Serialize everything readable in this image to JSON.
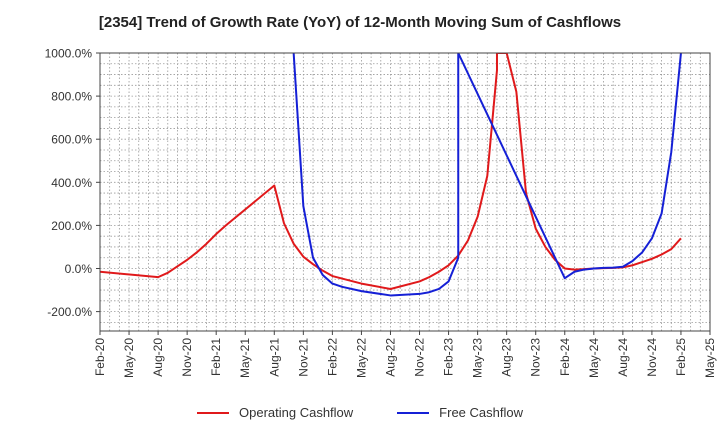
{
  "title": "[2354]  Trend of Growth Rate (YoY) of 12-Month Moving Sum of Cashflows",
  "chart_data": {
    "type": "line",
    "title": "[2354]  Trend of Growth Rate (YoY) of 12-Month Moving Sum of Cashflows",
    "xlabel": "",
    "ylabel": "",
    "xlim": [
      "Feb-20",
      "May-25"
    ],
    "ylim": [
      -290,
      1000
    ],
    "y_ticks": [
      1000,
      800,
      600,
      400,
      200,
      0,
      -200
    ],
    "y_tick_labels": [
      "1000.0%",
      "800.0%",
      "600.0%",
      "400.0%",
      "200.0%",
      "0.0%",
      "-200.0%"
    ],
    "x_ticks": [
      "Feb-20",
      "May-20",
      "Aug-20",
      "Nov-20",
      "Feb-21",
      "May-21",
      "Aug-21",
      "Nov-21",
      "Feb-22",
      "May-22",
      "Aug-22",
      "Nov-22",
      "Feb-23",
      "May-23",
      "Aug-23",
      "Nov-23",
      "Feb-24",
      "May-24",
      "Aug-24",
      "Nov-24",
      "Feb-25",
      "May-25"
    ],
    "grid": true,
    "legend_position": "bottom",
    "series": [
      {
        "name": "Operating Cashflow",
        "color": "#e0191b",
        "points": [
          [
            "Feb-20",
            -15
          ],
          [
            "Aug-20",
            -40
          ],
          [
            "Sep-20",
            -20
          ],
          [
            "Oct-20",
            10
          ],
          [
            "Nov-20",
            40
          ],
          [
            "Dec-20",
            75
          ],
          [
            "Jan-21",
            115
          ],
          [
            "Feb-21",
            160
          ],
          [
            "Mar-21",
            200
          ],
          [
            "Aug-21",
            385
          ],
          [
            "Sep-21",
            210
          ],
          [
            "Oct-21",
            115
          ],
          [
            "Nov-21",
            55
          ],
          [
            "Dec-21",
            20
          ],
          [
            "Jan-22",
            -10
          ],
          [
            "Feb-22",
            -35
          ],
          [
            "May-22",
            -70
          ],
          [
            "Aug-22",
            -95
          ],
          [
            "Nov-22",
            -60
          ],
          [
            "Dec-22",
            -40
          ],
          [
            "Jan-23",
            -15
          ],
          [
            "Feb-23",
            15
          ],
          [
            "Mar-23",
            60
          ],
          [
            "Apr-23",
            130
          ],
          [
            "May-23",
            240
          ],
          [
            "Jun-23",
            430
          ],
          [
            "Jul-23",
            920
          ],
          [
            "Jul-23",
            1000
          ],
          [
            "Aug-23",
            1000
          ],
          [
            "Sep-23",
            820
          ],
          [
            "Oct-23",
            350
          ],
          [
            "Nov-23",
            185
          ],
          [
            "Dec-23",
            100
          ],
          [
            "Jan-24",
            40
          ],
          [
            "Feb-24",
            0
          ],
          [
            "Mar-24",
            -5
          ],
          [
            "Apr-24",
            -3
          ],
          [
            "May-24",
            0
          ],
          [
            "Jun-24",
            2
          ],
          [
            "Jul-24",
            3
          ],
          [
            "Aug-24",
            5
          ],
          [
            "Sep-24",
            15
          ],
          [
            "Oct-24",
            30
          ],
          [
            "Nov-24",
            45
          ],
          [
            "Dec-24",
            65
          ],
          [
            "Jan-25",
            90
          ],
          [
            "Feb-25",
            140
          ]
        ]
      },
      {
        "name": "Free Cashflow",
        "color": "#1520d6",
        "points": [
          [
            "Oct-21",
            1000
          ],
          [
            "Nov-21",
            290
          ],
          [
            "Dec-21",
            50
          ],
          [
            "Jan-22",
            -30
          ],
          [
            "Feb-22",
            -70
          ],
          [
            "Mar-22",
            -85
          ],
          [
            "May-22",
            -105
          ],
          [
            "Aug-22",
            -125
          ],
          [
            "Nov-22",
            -118
          ],
          [
            "Dec-22",
            -110
          ],
          [
            "Jan-23",
            -95
          ],
          [
            "Feb-23",
            -60
          ],
          [
            "Mar-23",
            50
          ],
          [
            "Mar-23",
            1000
          ],
          [
            "Feb-24",
            -45
          ],
          [
            "Mar-24",
            -15
          ],
          [
            "Apr-24",
            -5
          ],
          [
            "May-24",
            0
          ],
          [
            "Jun-24",
            3
          ],
          [
            "Jul-24",
            4
          ],
          [
            "Aug-24",
            8
          ],
          [
            "Sep-24",
            35
          ],
          [
            "Oct-24",
            75
          ],
          [
            "Nov-24",
            140
          ],
          [
            "Dec-24",
            255
          ],
          [
            "Jan-25",
            540
          ],
          [
            "Feb-25",
            1000
          ]
        ]
      }
    ]
  }
}
